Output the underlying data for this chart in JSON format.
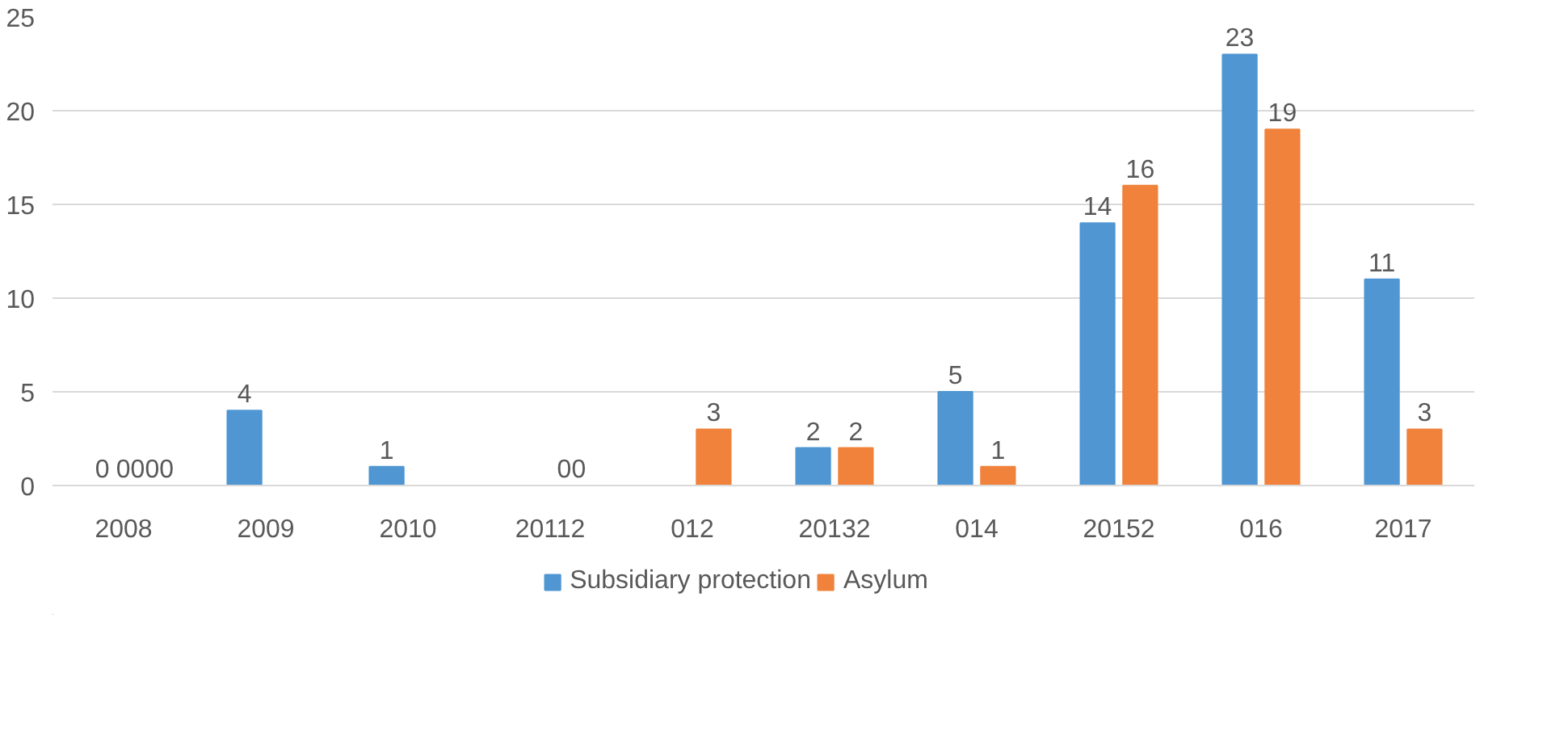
{
  "chart_data": {
    "type": "bar",
    "categories": [
      "2008",
      "2009",
      "2010",
      "20112",
      "012",
      "20132",
      "014",
      "20152",
      "016",
      "2017"
    ],
    "series": [
      {
        "name": "Subsidiary protection",
        "color": "#4f96d2",
        "values": [
          0,
          4,
          1,
          0,
          0,
          2,
          5,
          14,
          23,
          11
        ],
        "value_labels": [
          "0",
          "4",
          "1",
          null,
          null,
          "2",
          "5",
          "14",
          "23",
          "11"
        ]
      },
      {
        "name": "Asylum",
        "color": "#f0823c",
        "values": [
          0,
          0,
          0,
          0,
          3,
          2,
          1,
          16,
          19,
          3
        ],
        "value_labels": [
          "0000",
          null,
          null,
          "00",
          "3",
          "2",
          "1",
          "16",
          "19",
          "3"
        ]
      }
    ],
    "ylim": [
      0,
      25
    ],
    "yticks": [
      0,
      5,
      10,
      15,
      20,
      25
    ],
    "grid": "y",
    "legend": "bottom"
  }
}
